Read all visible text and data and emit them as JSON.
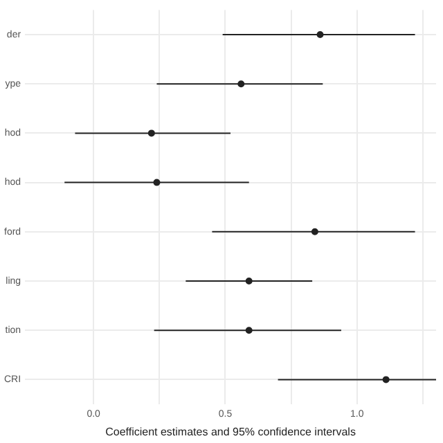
{
  "chart_data": {
    "type": "scatter",
    "orientation": "horizontal",
    "xlabel": "Coefficient estimates and 95% confidence intervals",
    "categories": [
      "der",
      "ype",
      "hod",
      "hod",
      "ford",
      "ling",
      "tion",
      "CRI"
    ],
    "values": [
      0.86,
      0.56,
      0.22,
      0.24,
      0.84,
      0.59,
      0.59,
      1.11
    ],
    "errors": [
      [
        0.49,
        1.22
      ],
      [
        0.24,
        0.87
      ],
      [
        -0.07,
        0.52
      ],
      [
        -0.11,
        0.59
      ],
      [
        0.45,
        1.22
      ],
      [
        0.35,
        0.83
      ],
      [
        0.23,
        0.94
      ],
      [
        0.7,
        1.3
      ]
    ],
    "color": "#222222",
    "xlim": [
      -0.26,
      1.3
    ],
    "xticks": [
      {
        "value": 0,
        "label": "0.0"
      },
      {
        "value": 0.25,
        "label": null
      },
      0.5,
      {
        "value": 0.75,
        "label": null
      },
      {
        "value": 1,
        "label": "1.0"
      },
      {
        "value": 1.25,
        "label": null
      }
    ],
    "grid": true,
    "marker": "circle",
    "legend": false
  }
}
